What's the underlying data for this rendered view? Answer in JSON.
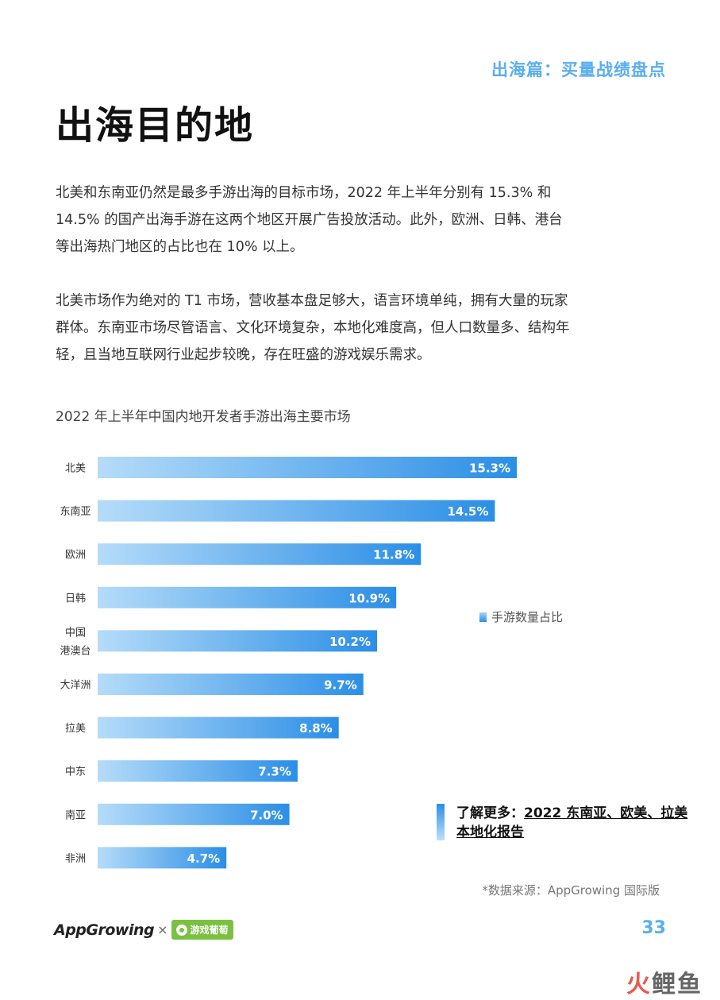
{
  "header": {
    "section_tag": "出海篇：买量战绩盘点"
  },
  "page": {
    "title": "出海目的地",
    "paragraphs": [
      "北美和东南亚仍然是最多手游出海的目标市场，2022 年上半年分别有 15.3% 和 14.5% 的国产出海手游在这两个地区开展广告投放活动。此外，欧洲、日韩、港台等出海热门地区的占比也在 10% 以上。",
      "北美市场作为绝对的 T1 市场，营收基本盘足够大，语言环境单纯，拥有大量的玩家群体。东南亚市场尽管语言、文化环境复杂，本地化难度高，但人口数量多、结构年轻，且当地互联网行业起步较晚，存在旺盛的游戏娱乐需求。"
    ]
  },
  "chart_data": {
    "type": "bar",
    "orientation": "horizontal",
    "title": "2022 年上半年中国内地开发者手游出海主要市场",
    "categories": [
      "北美",
      "东南亚",
      "欧洲",
      "日韩",
      "中国\n港澳台",
      "大洋洲",
      "拉美",
      "中东",
      "南亚",
      "非洲"
    ],
    "series": [
      {
        "name": "手游数量占比",
        "values": [
          15.3,
          14.5,
          11.8,
          10.9,
          10.2,
          9.7,
          8.8,
          7.3,
          7.0,
          4.7
        ]
      }
    ],
    "value_labels": [
      "15.3%",
      "14.5%",
      "11.8%",
      "10.9%",
      "10.2%",
      "9.7%",
      "8.8%",
      "7.3%",
      "7.0%",
      "4.7%"
    ],
    "xlim": [
      0,
      15.3
    ],
    "grid": false,
    "legend": "right",
    "colors": {
      "bar_start": "#b5dcf9",
      "bar_end": "#2b8ee6",
      "label": "#ffffff"
    }
  },
  "more": {
    "prefix": "了解更多：",
    "link_text": "2022 东南亚、欧美、拉美本地化报告"
  },
  "source": "*数据来源：AppGrowing 国际版",
  "footer": {
    "logo_text": "AppGrowing",
    "separator": "×",
    "partner_text": "游戏葡萄",
    "page_number": "33"
  },
  "watermark": {
    "text_a": "火",
    "text_b": "鲤鱼"
  }
}
